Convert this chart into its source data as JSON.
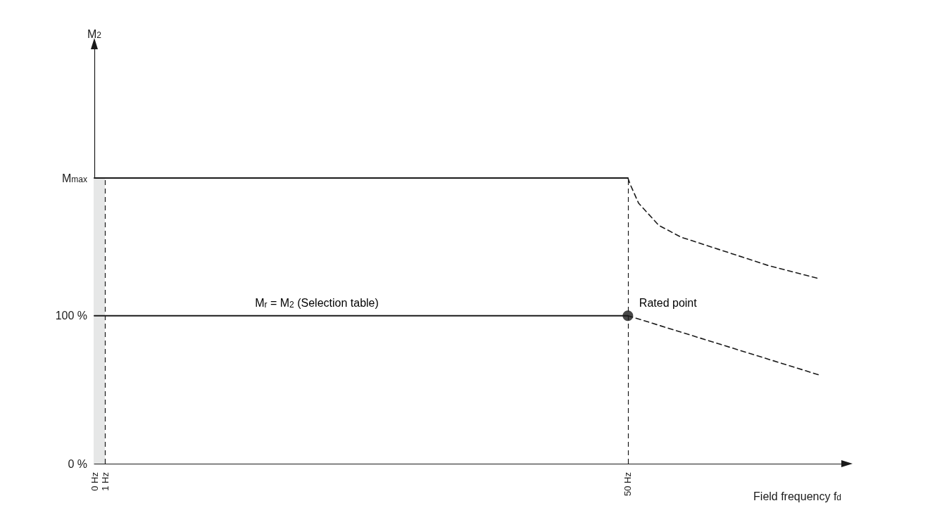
{
  "chart_data": {
    "type": "line",
    "xlabel": "Field frequency f$_{d}$",
    "ylabel": "M$_{2}$",
    "xlim": [
      0,
      70
    ],
    "ylim": [
      0,
      280
    ],
    "xticks": [
      {
        "value": 0,
        "label": "0 Hz"
      },
      {
        "value": 1,
        "label": "1 Hz"
      },
      {
        "value": 50,
        "label": "50 Hz"
      }
    ],
    "yticks": [
      {
        "value": 0,
        "label": "0 %"
      },
      {
        "value": 100,
        "label": "100 %"
      },
      {
        "value": 193,
        "label": "M$_{max}$"
      }
    ],
    "series": [
      {
        "color": "#1a1a1a",
        "x": [
          0,
          50
        ],
        "values": [
          193,
          193
        ],
        "line_style": "solid",
        "marker": "none"
      },
      {
        "color": "#1a1a1a",
        "x": [
          50,
          50.2,
          51,
          52.9,
          55,
          58,
          63.1,
          67.9
        ],
        "values": [
          193,
          189,
          176,
          161,
          153,
          146,
          134,
          125
        ],
        "line_style": "dashed",
        "marker": "none"
      },
      {
        "color": "#1a1a1a",
        "x": [
          0,
          50
        ],
        "values": [
          100,
          100
        ],
        "line_style": "solid",
        "marker": "none"
      },
      {
        "color": "#1a1a1a",
        "x": [
          50,
          67.9
        ],
        "values": [
          100,
          60
        ],
        "line_style": "dashed",
        "marker": "none"
      },
      {
        "type": "scatter",
        "color": "#1a1a1a",
        "x": [
          50
        ],
        "values": [
          100
        ],
        "marker": "circle"
      }
    ],
    "ref_lines": [
      {
        "axis": "x",
        "value": 1,
        "color": "#1a1a1a",
        "line_style": "dashed"
      },
      {
        "axis": "x",
        "value": 50,
        "color": "#1a1a1a",
        "line_style": "dashed"
      }
    ],
    "bands": [
      {
        "axis": "x",
        "from": 0,
        "to": 1,
        "color": "#e6e7e7"
      }
    ],
    "annotations": [
      {
        "text": "M$_{r}$ = M$_{2}$ (Selection table)",
        "x": 14,
        "y": 100
      },
      {
        "text": "Rated point",
        "x": 50,
        "y": 100
      }
    ],
    "grid": false
  }
}
